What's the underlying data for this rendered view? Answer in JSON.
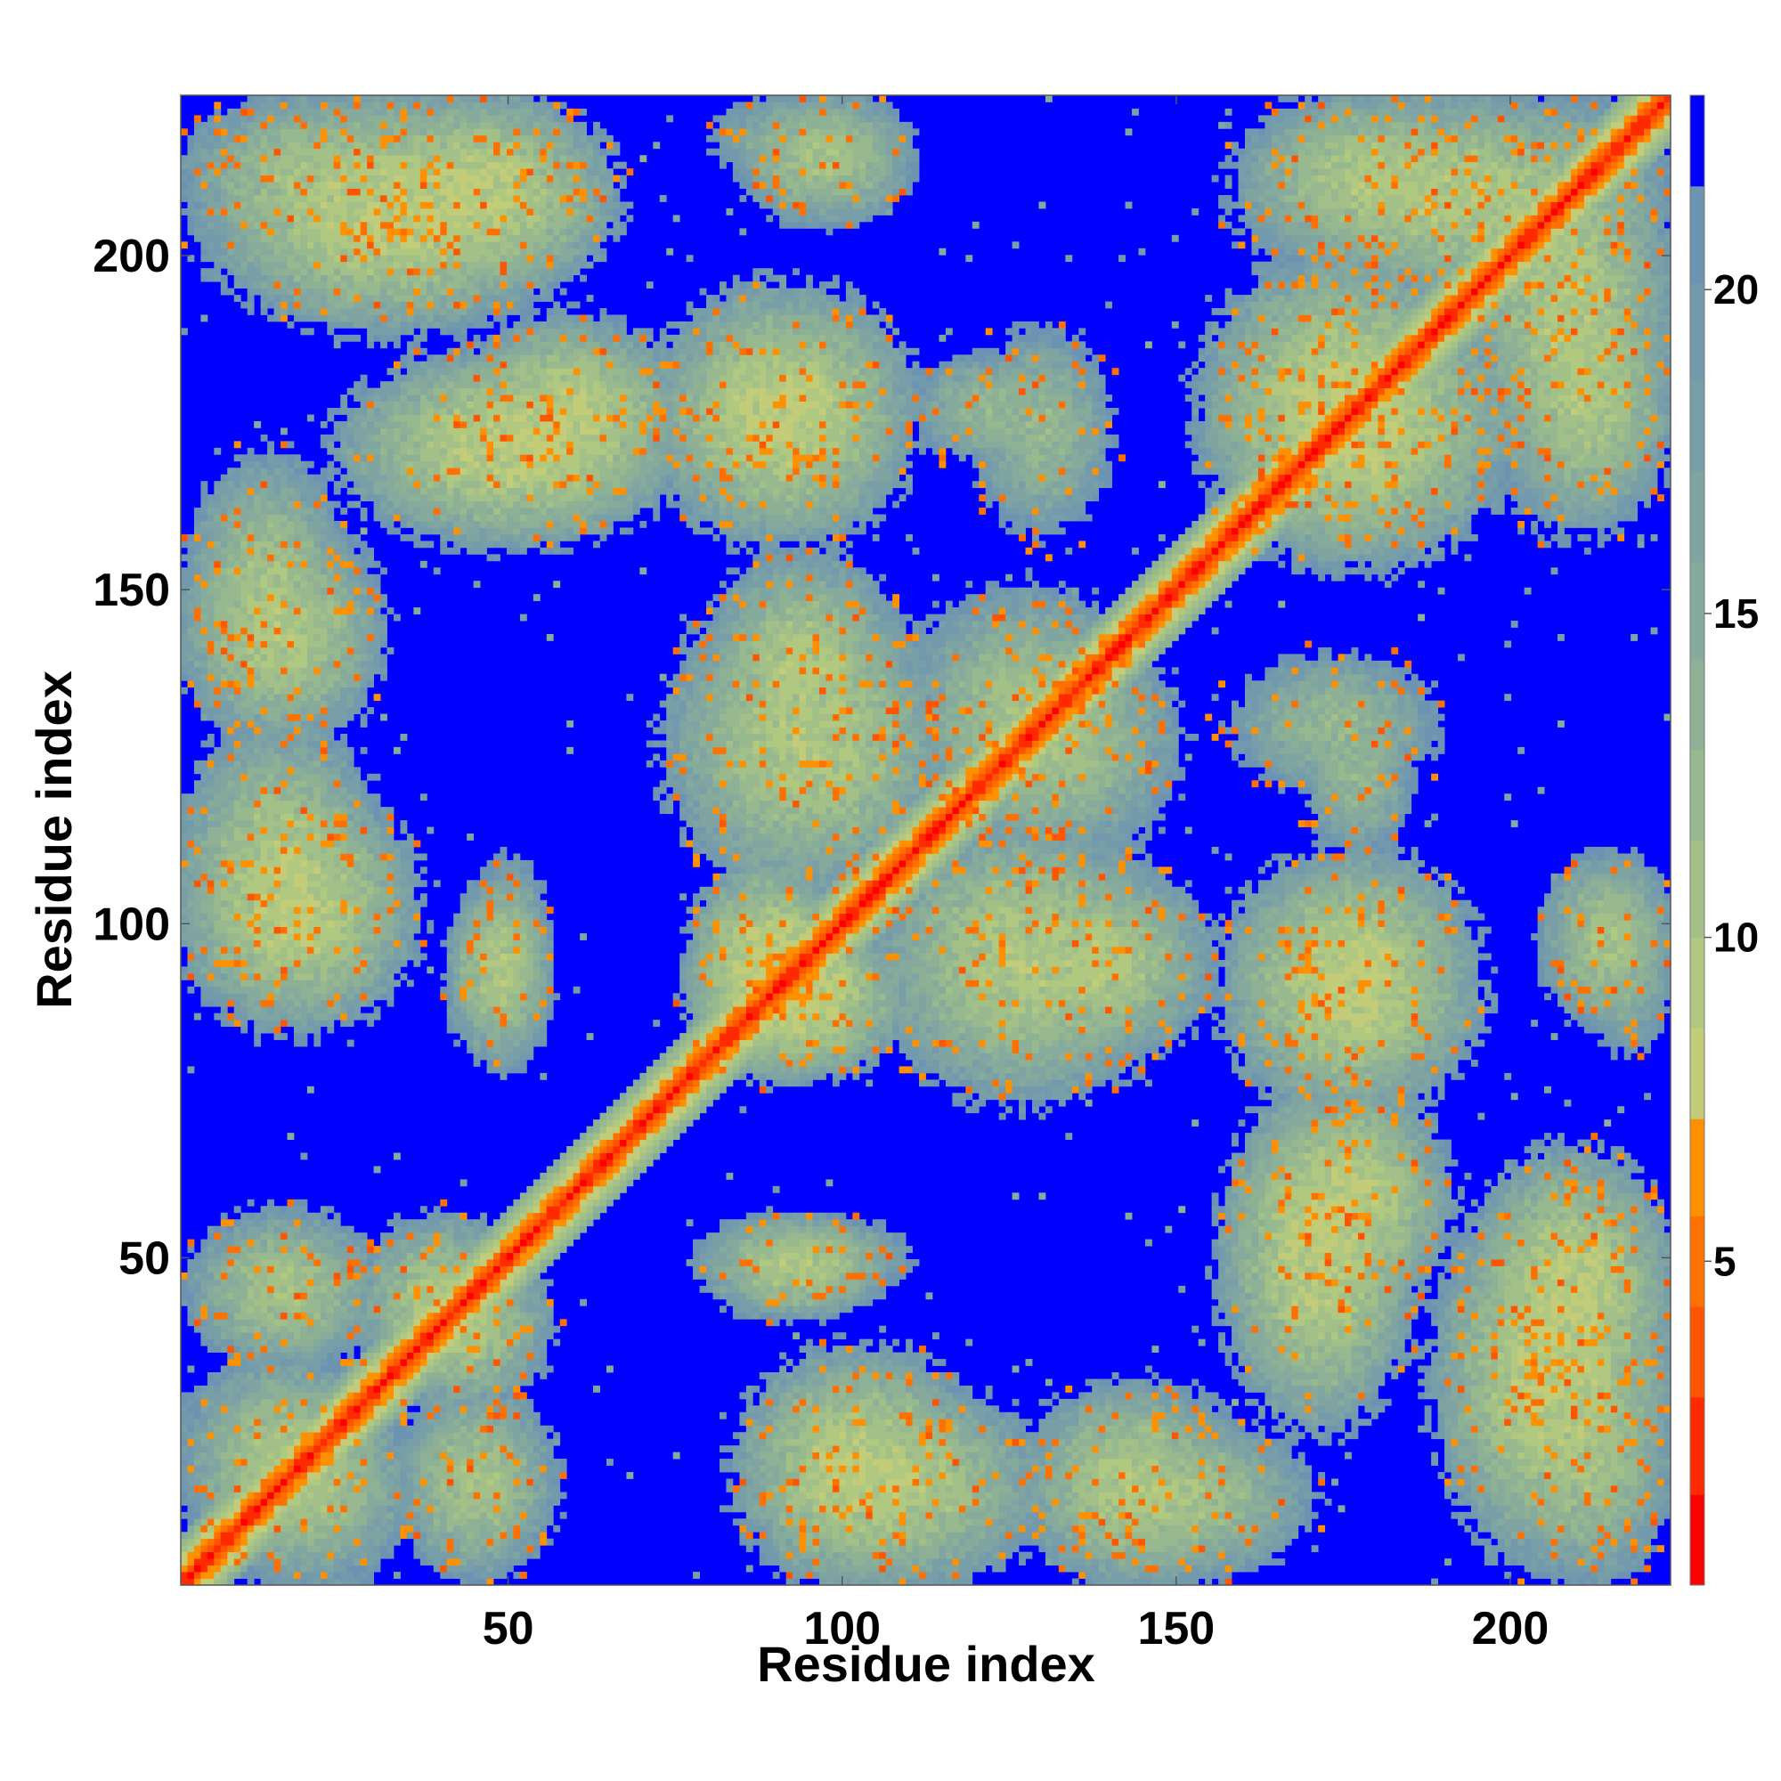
{
  "chart_data": {
    "type": "heatmap",
    "title": "",
    "xlabel": "Residue index",
    "ylabel": "Residue index",
    "xlim": [
      1,
      224
    ],
    "ylim": [
      1,
      224
    ],
    "x_ticks": [
      50,
      100,
      150,
      200
    ],
    "y_ticks": [
      50,
      100,
      150,
      200
    ],
    "x_tick_labels": [
      "50",
      "100",
      "150",
      "200"
    ],
    "y_tick_labels": [
      "50",
      "100",
      "150",
      "200"
    ],
    "n_residues": 224,
    "value_range": [
      0,
      23
    ],
    "colorbar": {
      "range": [
        0,
        23
      ],
      "ticks": [
        5,
        10,
        15,
        20
      ],
      "tick_labels": [
        "5",
        "10",
        "15",
        "20"
      ],
      "bands": [
        {
          "from": 0,
          "to": 1.4,
          "color": "#ff0000"
        },
        {
          "from": 1.4,
          "to": 2.9,
          "color": "#ff2a00"
        },
        {
          "from": 2.9,
          "to": 4.3,
          "color": "#ff5500"
        },
        {
          "from": 4.3,
          "to": 5.7,
          "color": "#ff7000"
        },
        {
          "from": 5.7,
          "to": 7.2,
          "color": "#ff9000"
        },
        {
          "from": 7.2,
          "to": 8.6,
          "color": "#c3cc78"
        },
        {
          "from": 8.6,
          "to": 10.0,
          "color": "#b0c880"
        },
        {
          "from": 10.0,
          "to": 11.5,
          "color": "#a2c088"
        },
        {
          "from": 11.5,
          "to": 12.9,
          "color": "#98b88f"
        },
        {
          "from": 12.9,
          "to": 14.3,
          "color": "#8eb095"
        },
        {
          "from": 14.3,
          "to": 15.8,
          "color": "#86aa9c"
        },
        {
          "from": 15.8,
          "to": 17.2,
          "color": "#7fa4a2"
        },
        {
          "from": 17.2,
          "to": 18.6,
          "color": "#789ea8"
        },
        {
          "from": 18.6,
          "to": 20.1,
          "color": "#7399ad"
        },
        {
          "from": 20.1,
          "to": 21.6,
          "color": "#6d93b3"
        },
        {
          "from": 21.6,
          "to": 23.0,
          "color": "#0000ff"
        }
      ]
    },
    "contact_regions": [
      {
        "x": [
          1,
          224
        ],
        "y": [
          1,
          224
        ],
        "kind": "diagonal",
        "width": 7,
        "min": 0.5
      },
      {
        "x": [
          4,
          35
        ],
        "y": [
          1,
          30
        ],
        "min": 9
      },
      {
        "x": [
          28,
          52
        ],
        "y": [
          30,
          55
        ],
        "min": 8
      },
      {
        "x": [
          2,
          30
        ],
        "y": [
          34,
          56
        ],
        "min": 9
      },
      {
        "x": [
          85,
          130
        ],
        "y": [
          1,
          30
        ],
        "min": 8
      },
      {
        "x": [
          130,
          170
        ],
        "y": [
          2,
          25
        ],
        "min": 9
      },
      {
        "x": [
          190,
          224
        ],
        "y": [
          4,
          60
        ],
        "min": 7
      },
      {
        "x": [
          158,
          185
        ],
        "y": [
          25,
          75
        ],
        "min": 7
      },
      {
        "x": [
          78,
          110
        ],
        "y": [
          45,
          55
        ],
        "min": 10
      },
      {
        "x": [
          1,
          35
        ],
        "y": [
          85,
          120
        ],
        "min": 7
      },
      {
        "x": [
          42,
          55
        ],
        "y": [
          80,
          106
        ],
        "min": 8
      },
      {
        "x": [
          78,
          100
        ],
        "y": [
          78,
          108
        ],
        "min": 6
      },
      {
        "x": [
          105,
          150
        ],
        "y": [
          74,
          115
        ],
        "min": 8
      },
      {
        "x": [
          158,
          195
        ],
        "y": [
          72,
          110
        ],
        "min": 7
      },
      {
        "x": [
          206,
          224
        ],
        "y": [
          85,
          110
        ],
        "min": 9
      },
      {
        "x": [
          80,
          108
        ],
        "y": [
          120,
          155
        ],
        "min": 8
      },
      {
        "x": [
          110,
          145
        ],
        "y": [
          112,
          150
        ],
        "min": 9
      },
      {
        "x": [
          158,
          190
        ],
        "y": [
          120,
          140
        ],
        "min": 11
      },
      {
        "x": [
          1,
          30
        ],
        "y": [
          128,
          160
        ],
        "min": 8
      },
      {
        "x": [
          42,
          75
        ],
        "y": [
          162,
          190
        ],
        "min": 7
      },
      {
        "x": [
          75,
          105
        ],
        "y": [
          165,
          190
        ],
        "min": 7
      },
      {
        "x": [
          110,
          135
        ],
        "y": [
          170,
          185
        ],
        "min": 11
      },
      {
        "x": [
          25,
          65
        ],
        "y": [
          195,
          224
        ],
        "min": 7
      },
      {
        "x": [
          1,
          40
        ],
        "y": [
          200,
          224
        ],
        "min": 9
      },
      {
        "x": [
          80,
          110
        ],
        "y": [
          212,
          224
        ],
        "min": 11
      },
      {
        "x": [
          155,
          195
        ],
        "y": [
          155,
          200
        ],
        "min": 7
      },
      {
        "x": [
          160,
          200
        ],
        "y": [
          200,
          224
        ],
        "min": 8
      },
      {
        "x": [
          195,
          224
        ],
        "y": [
          160,
          224
        ],
        "min": 8
      }
    ]
  }
}
